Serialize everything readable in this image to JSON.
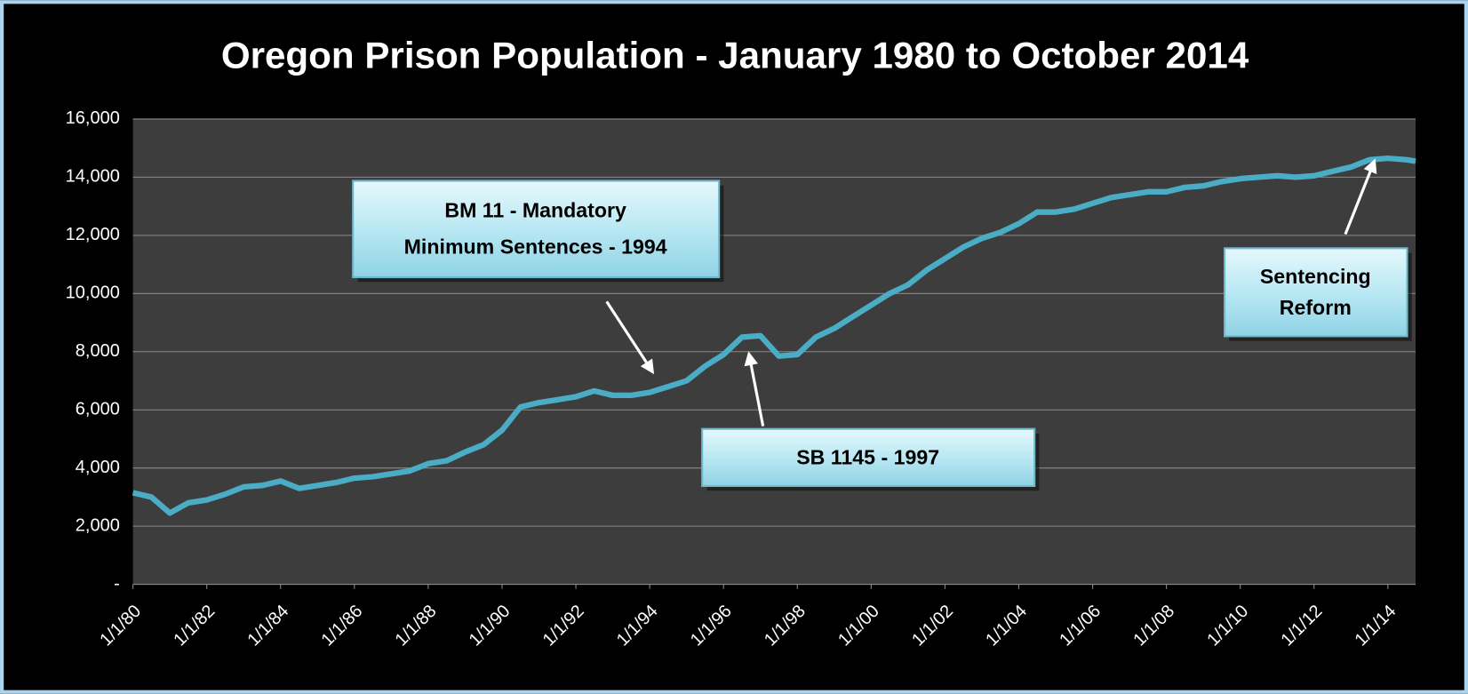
{
  "chart_data": {
    "type": "line",
    "title": "Oregon Prison Population - January 1980 to October 2014",
    "x": [
      "1/1/80",
      "7/1/80",
      "1/1/81",
      "7/1/81",
      "1/1/82",
      "7/1/82",
      "1/1/83",
      "7/1/83",
      "1/1/84",
      "7/1/84",
      "1/1/85",
      "7/1/85",
      "1/1/86",
      "7/1/86",
      "1/1/87",
      "7/1/87",
      "1/1/88",
      "7/1/88",
      "1/1/89",
      "7/1/89",
      "1/1/90",
      "7/1/90",
      "1/1/91",
      "7/1/91",
      "1/1/92",
      "7/1/92",
      "1/1/93",
      "7/1/93",
      "1/1/94",
      "7/1/94",
      "1/1/95",
      "7/1/95",
      "1/1/96",
      "7/1/96",
      "1/1/97",
      "7/1/97",
      "1/1/98",
      "7/1/98",
      "1/1/99",
      "7/1/99",
      "1/1/00",
      "7/1/00",
      "1/1/01",
      "7/1/01",
      "1/1/02",
      "7/1/02",
      "1/1/03",
      "7/1/03",
      "1/1/04",
      "7/1/04",
      "1/1/05",
      "7/1/05",
      "1/1/06",
      "7/1/06",
      "1/1/07",
      "7/1/07",
      "1/1/08",
      "7/1/08",
      "1/1/09",
      "7/1/09",
      "1/1/10",
      "7/1/10",
      "1/1/11",
      "7/1/11",
      "1/1/12",
      "7/1/12",
      "1/1/13",
      "7/1/13",
      "1/1/14",
      "7/1/14",
      "10/1/14"
    ],
    "series": [
      {
        "color": "#4bacc6",
        "values": [
          3150,
          3000,
          2450,
          2800,
          2900,
          3100,
          3350,
          3400,
          3550,
          3300,
          3400,
          3500,
          3650,
          3700,
          3800,
          3900,
          4150,
          4250,
          4550,
          4800,
          5300,
          6100,
          6250,
          6350,
          6450,
          6650,
          6500,
          6500,
          6600,
          6800,
          7000,
          7500,
          7900,
          8500,
          8550,
          7850,
          7900,
          8500,
          8800,
          9200,
          9600,
          10000,
          10300,
          10800,
          11200,
          11600,
          11900,
          12100,
          12400,
          12800,
          12800,
          12900,
          13100,
          13300,
          13400,
          13500,
          13500,
          13650,
          13700,
          13850,
          13950,
          14000,
          14050,
          14000,
          14050,
          14200,
          14350,
          14600,
          14650,
          14600,
          14550
        ]
      }
    ],
    "xlim": [
      "1/1/80",
      "10/1/14"
    ],
    "xticks": [
      "1/1/80",
      "1/1/82",
      "1/1/84",
      "1/1/86",
      "1/1/88",
      "1/1/90",
      "1/1/92",
      "1/1/94",
      "1/1/96",
      "1/1/98",
      "1/1/00",
      "1/1/02",
      "1/1/04",
      "1/1/06",
      "1/1/08",
      "1/1/10",
      "1/1/12",
      "1/1/14"
    ],
    "ylim": [
      0,
      16000
    ],
    "yticks": [
      {
        "value": 0,
        "label": "-"
      },
      {
        "value": 2000,
        "label": "2,000"
      },
      {
        "value": 4000,
        "label": "4,000"
      },
      {
        "value": 6000,
        "label": "6,000"
      },
      {
        "value": 8000,
        "label": "8,000"
      },
      {
        "value": 10000,
        "label": "10,000"
      },
      {
        "value": 12000,
        "label": "12,000"
      },
      {
        "value": 14000,
        "label": "14,000"
      },
      {
        "value": 16000,
        "label": "16,000"
      }
    ],
    "grid": true,
    "annotations": [
      {
        "lines": [
          "BM 11 - Mandatory",
          "Minimum Sentences - 1994"
        ]
      },
      {
        "lines": [
          "SB 1145 - 1997"
        ]
      },
      {
        "lines": [
          "Sentencing",
          "Reform"
        ]
      }
    ]
  }
}
